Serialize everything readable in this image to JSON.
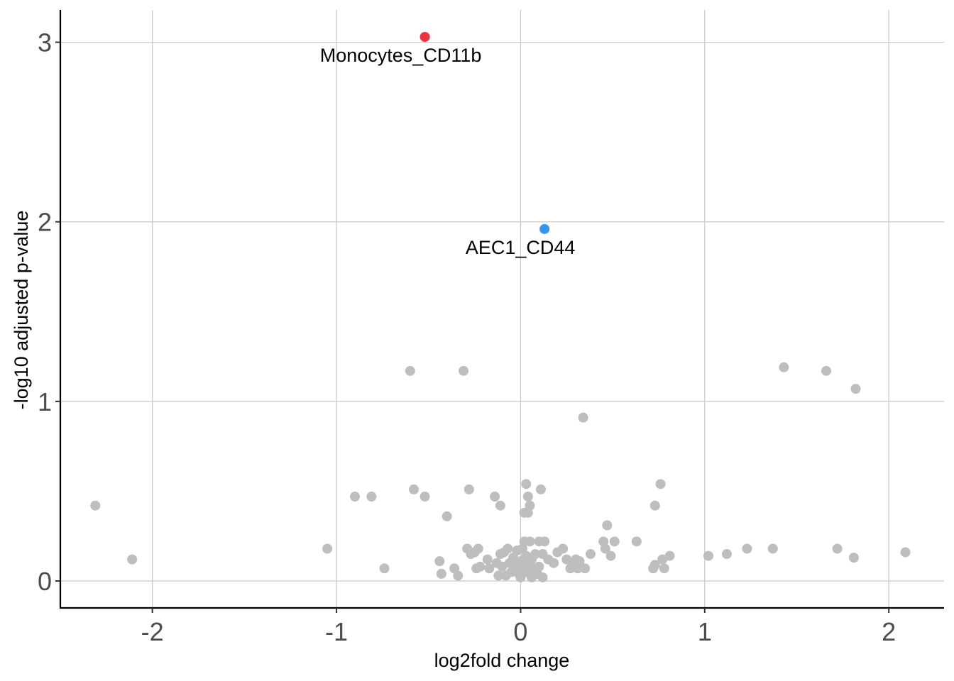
{
  "chart_data": {
    "type": "scatter",
    "title": "",
    "xlabel": "log2fold change",
    "ylabel": "-log10 adjusted p-value",
    "xlim": [
      -2.5,
      2.3
    ],
    "ylim": [
      -0.15,
      3.18
    ],
    "xticks": [
      -2,
      -1,
      0,
      1,
      2
    ],
    "xtick_labels": [
      "-2",
      "-1",
      "0",
      "1",
      "2"
    ],
    "yticks": [
      0,
      1,
      2,
      3
    ],
    "ytick_labels": [
      "0",
      "1",
      "2",
      "3"
    ],
    "grid": true,
    "colors": {
      "default": "#bebebe",
      "monocytes": "#f0323c",
      "aec1": "#3295f0"
    },
    "highlighted": [
      {
        "label": "Monocytes_CD11b",
        "x": -0.52,
        "y": 3.03,
        "color": "#f0323c"
      },
      {
        "label": "AEC1_CD44",
        "x": 0.13,
        "y": 1.96,
        "color": "#3295f0"
      }
    ],
    "points": [
      [
        -2.31,
        0.42
      ],
      [
        -2.11,
        0.12
      ],
      [
        -1.05,
        0.18
      ],
      [
        -0.9,
        0.47
      ],
      [
        -0.81,
        0.47
      ],
      [
        -0.74,
        0.07
      ],
      [
        -0.6,
        1.17
      ],
      [
        -0.58,
        0.51
      ],
      [
        -0.52,
        0.47
      ],
      [
        -0.44,
        0.11
      ],
      [
        -0.43,
        0.04
      ],
      [
        -0.4,
        0.36
      ],
      [
        -0.36,
        0.07
      ],
      [
        -0.34,
        0.03
      ],
      [
        -0.31,
        1.17
      ],
      [
        -0.29,
        0.18
      ],
      [
        -0.28,
        0.51
      ],
      [
        -0.27,
        0.15
      ],
      [
        -0.25,
        0.16
      ],
      [
        -0.24,
        0.07
      ],
      [
        -0.23,
        0.18
      ],
      [
        -0.22,
        0.08
      ],
      [
        -0.18,
        0.12
      ],
      [
        -0.17,
        0.07
      ],
      [
        -0.14,
        0.47
      ],
      [
        -0.13,
        0.1
      ],
      [
        -0.12,
        0.03
      ],
      [
        -0.11,
        0.15
      ],
      [
        -0.11,
        0.42
      ],
      [
        -0.1,
        0.08
      ],
      [
        -0.09,
        0.16
      ],
      [
        -0.08,
        0.03
      ],
      [
        -0.07,
        0.18
      ],
      [
        -0.06,
        0.1
      ],
      [
        -0.05,
        0.05
      ],
      [
        -0.04,
        0.13
      ],
      [
        -0.03,
        0.08
      ],
      [
        -0.02,
        0.17
      ],
      [
        -0.01,
        0.04
      ],
      [
        0.0,
        0.02
      ],
      [
        0.0,
        0.11
      ],
      [
        0.01,
        0.06
      ],
      [
        0.01,
        0.18
      ],
      [
        0.02,
        0.22
      ],
      [
        0.02,
        0.38
      ],
      [
        0.03,
        0.14
      ],
      [
        0.03,
        0.05
      ],
      [
        0.03,
        0.54
      ],
      [
        0.04,
        0.47
      ],
      [
        0.04,
        0.09
      ],
      [
        0.04,
        0.38
      ],
      [
        0.05,
        0.42
      ],
      [
        0.05,
        0.22
      ],
      [
        0.06,
        0.02
      ],
      [
        0.06,
        0.12
      ],
      [
        0.07,
        0.07
      ],
      [
        0.08,
        0.15
      ],
      [
        0.09,
        0.04
      ],
      [
        0.1,
        0.22
      ],
      [
        0.1,
        0.08
      ],
      [
        0.11,
        0.51
      ],
      [
        0.12,
        0.15
      ],
      [
        0.12,
        0.02
      ],
      [
        0.13,
        0.22
      ],
      [
        0.15,
        0.12
      ],
      [
        0.18,
        0.1
      ],
      [
        0.2,
        0.16
      ],
      [
        0.23,
        0.18
      ],
      [
        0.25,
        0.12
      ],
      [
        0.27,
        0.07
      ],
      [
        0.29,
        0.1
      ],
      [
        0.3,
        0.12
      ],
      [
        0.31,
        0.07
      ],
      [
        0.32,
        0.11
      ],
      [
        0.34,
        0.91
      ],
      [
        0.35,
        0.07
      ],
      [
        0.38,
        0.15
      ],
      [
        0.45,
        0.22
      ],
      [
        0.46,
        0.18
      ],
      [
        0.47,
        0.31
      ],
      [
        0.49,
        0.14
      ],
      [
        0.51,
        0.22
      ],
      [
        0.63,
        0.22
      ],
      [
        0.72,
        0.07
      ],
      [
        0.73,
        0.09
      ],
      [
        0.73,
        0.42
      ],
      [
        0.76,
        0.54
      ],
      [
        0.77,
        0.12
      ],
      [
        0.78,
        0.07
      ],
      [
        0.81,
        0.14
      ],
      [
        1.02,
        0.14
      ],
      [
        1.12,
        0.15
      ],
      [
        1.23,
        0.18
      ],
      [
        1.37,
        0.18
      ],
      [
        1.43,
        1.19
      ],
      [
        1.66,
        1.17
      ],
      [
        1.72,
        0.18
      ],
      [
        1.81,
        0.13
      ],
      [
        1.82,
        1.07
      ],
      [
        2.09,
        0.16
      ]
    ]
  }
}
